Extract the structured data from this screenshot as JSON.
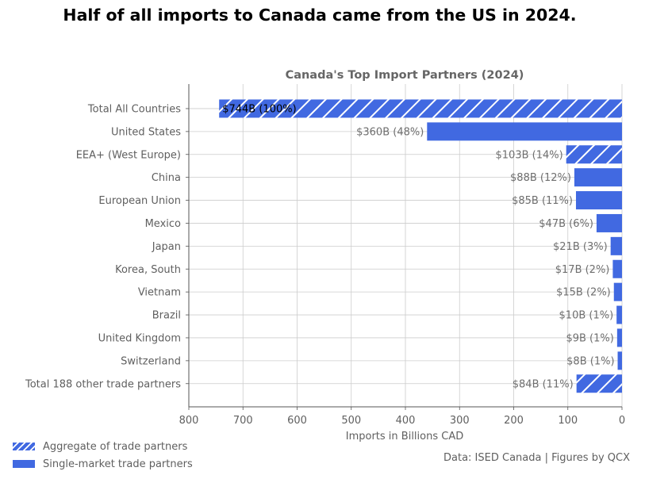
{
  "headline": "Half of all imports to Canada came from the US in 2024.",
  "chart_data": {
    "type": "bar",
    "orientation": "horizontal",
    "title": "Canada's Top Import Partners (2024)",
    "xlabel": "Imports in Billions CAD",
    "ylabel": "",
    "xlim": [
      800,
      0
    ],
    "x_axis_reversed": true,
    "xticks": [
      800,
      700,
      600,
      500,
      400,
      300,
      200,
      100,
      0
    ],
    "grid": true,
    "color": "#4169e1",
    "categories": [
      "Total All Countries",
      "United States",
      "EEA+ (West Europe)",
      "China",
      "European Union",
      "Mexico",
      "Japan",
      "Korea, South",
      "Vietnam",
      "Brazil",
      "United Kingdom",
      "Switzerland",
      "Total 188 other trade partners"
    ],
    "values": [
      744,
      360,
      103,
      88,
      85,
      47,
      21,
      17,
      15,
      10,
      9,
      8,
      84
    ],
    "data_labels": [
      "$744B (100%)",
      "$360B (48%)",
      "$103B (14%)",
      "$88B (12%)",
      "$85B (11%)",
      "$47B (6%)",
      "$21B (3%)",
      "$17B (2%)",
      "$15B (2%)",
      "$10B (1%)",
      "$9B (1%)",
      "$8B (1%)",
      "$84B (11%)"
    ],
    "aggregate": [
      true,
      false,
      true,
      false,
      false,
      false,
      false,
      false,
      false,
      false,
      false,
      false,
      true
    ],
    "legend": {
      "position": "bottom-left",
      "entries": [
        {
          "label": "Aggregate of trade partners",
          "style": "hatched"
        },
        {
          "label": "Single-market trade partners",
          "style": "solid"
        }
      ]
    }
  },
  "source_note": "Data: ISED Canada | Figures by QCX"
}
